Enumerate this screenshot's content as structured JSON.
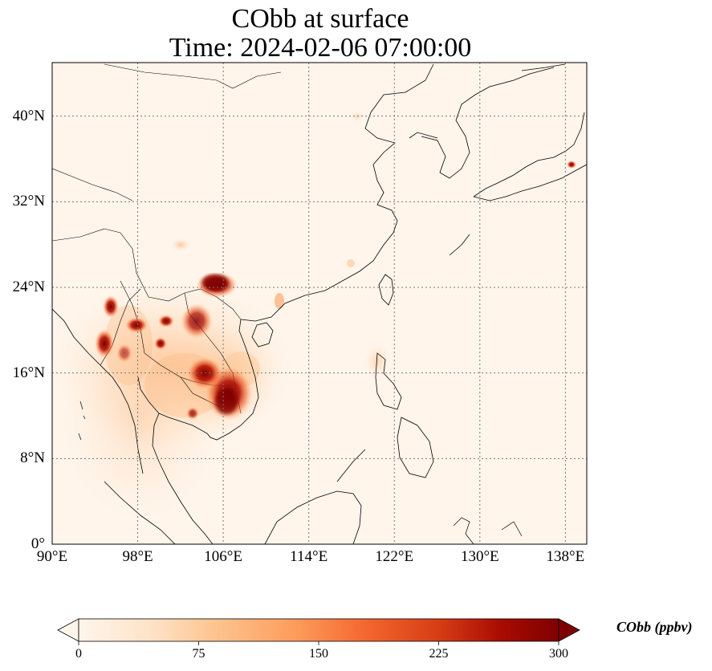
{
  "title": {
    "line1": "CObb at surface",
    "line2": "Time: 2024-02-06 07:00:00"
  },
  "map": {
    "region": "East and Southeast Asia",
    "lon_range": [
      90,
      140
    ],
    "lat_range": [
      0,
      45
    ],
    "gridlines": "dotted",
    "lat_ticks": [
      "40°N",
      "32°N",
      "24°N",
      "16°N",
      "8°N",
      "0°"
    ],
    "lat_values": [
      40,
      32,
      24,
      16,
      8,
      0
    ],
    "lon_ticks": [
      "90°E",
      "98°E",
      "106°E",
      "114°E",
      "122°E",
      "130°E",
      "138°E"
    ],
    "lon_values": [
      90,
      98,
      106,
      114,
      122,
      130,
      138
    ],
    "background_color": "#fff5eb",
    "coastline_color": "#000000",
    "hotspots": [
      {
        "area": "northern Vietnam / southern China border",
        "lon": 104.5,
        "lat": 24.2,
        "level": 300
      },
      {
        "area": "central Cambodia",
        "lon": 106.5,
        "lat": 13.5,
        "level": 290
      },
      {
        "area": "northern Cambodia / southern Laos",
        "lon": 105.5,
        "lat": 15.5,
        "level": 260
      },
      {
        "area": "northern Laos",
        "lon": 103.0,
        "lat": 20.5,
        "level": 230
      },
      {
        "area": "Myanmar west",
        "lon": 94.8,
        "lat": 19.0,
        "level": 270
      },
      {
        "area": "Myanmar north",
        "lon": 95.5,
        "lat": 22.5,
        "level": 230
      },
      {
        "area": "northern Thailand",
        "lon": 98.5,
        "lat": 20.2,
        "level": 240
      },
      {
        "area": "western Laos",
        "lon": 100.5,
        "lat": 19.0,
        "level": 230
      },
      {
        "area": "southern Japan",
        "lon": 138.6,
        "lat": 35.5,
        "level": 220
      }
    ]
  },
  "colorbar": {
    "label": "CObb (ppbv)",
    "ticks": [
      "0",
      "75",
      "150",
      "225",
      "300"
    ],
    "min": 0,
    "max": 300,
    "extend": "both",
    "colormap": "OrRd",
    "colors": [
      "#fff5eb",
      "#fee3c8",
      "#fdc590",
      "#fd9c5c",
      "#f4662f",
      "#d63d15",
      "#a80b02",
      "#7f0000"
    ]
  }
}
